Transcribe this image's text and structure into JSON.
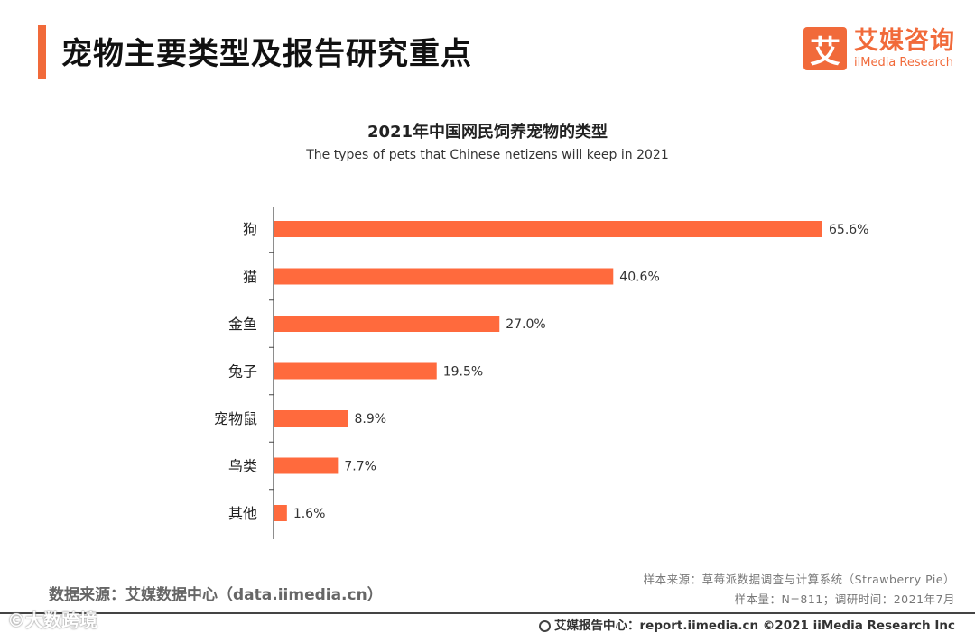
{
  "header": {
    "title": "宠物主要类型及报告研究重点",
    "logo_mark": "艾",
    "logo_cn": "艾媒咨询",
    "logo_en": "iiMedia Research"
  },
  "chart_data": {
    "type": "bar",
    "orientation": "horizontal",
    "title": "2021年中国网民饲养宠物的类型",
    "subtitle": "The types of pets that Chinese netizens will keep in 2021",
    "categories": [
      "狗",
      "猫",
      "金鱼",
      "兔子",
      "宠物鼠",
      "鸟类",
      "其他"
    ],
    "values": [
      65.6,
      40.6,
      27.0,
      19.5,
      8.9,
      7.7,
      1.6
    ],
    "labels": [
      "65.6%",
      "40.6%",
      "27.0%",
      "19.5%",
      "8.9%",
      "7.7%",
      "1.6%"
    ],
    "unit": "%",
    "xlim": [
      0,
      65.6
    ],
    "bar_color": "#ff6a3d"
  },
  "footer": {
    "data_source": "数据来源：艾媒数据中心（data.iimedia.cn）",
    "sample_source": "样本来源：草莓派数据调查与计算系统（Strawberry Pie）",
    "sample_size": "样本量：N=811；调研时间：2021年7月",
    "copyright": "艾媒报告中心：report.iimedia.cn ©2021  iiMedia Research  Inc",
    "watermark": "©大数跨境"
  },
  "colors": {
    "accent": "#f16a3a",
    "bar": "#ff6a3d"
  }
}
